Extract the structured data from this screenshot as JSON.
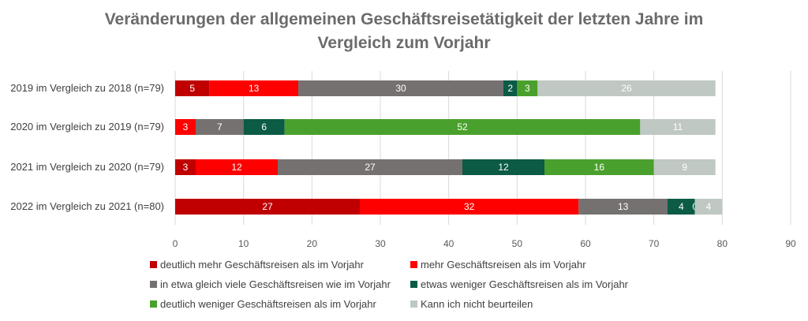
{
  "chart_data": {
    "type": "bar",
    "orientation": "horizontal",
    "stacked": true,
    "title_line1": "Veränderungen der allgemeinen Geschäftsreisetätigkeit der letzten Jahre im",
    "title_line2": "Vergleich zum Vorjahr",
    "categories": [
      "2019 im Vergleich zu 2018 (n=79)",
      "2020 im Vergleich zu 2019 (n=79)",
      "2021 im Vergleich zu 2020 (n=79)",
      "2022 im Vergleich zu 2021 (n=80)"
    ],
    "series": [
      {
        "name": "deutlich mehr Geschäftsreisen als im Vorjahr",
        "color": "#c00000",
        "label_color": "#ffffff",
        "values": [
          5,
          0,
          3,
          27
        ]
      },
      {
        "name": "mehr Geschäftsreisen als im Vorjahr",
        "color": "#ff0000",
        "label_color": "#ffffff",
        "values": [
          13,
          3,
          12,
          32
        ]
      },
      {
        "name": "in etwa gleich viele Geschäftsreisen wie im Vorjahr",
        "color": "#767171",
        "label_color": "#ffffff",
        "values": [
          30,
          7,
          27,
          13
        ]
      },
      {
        "name": "etwas weniger Geschäftsreisen als im Vorjahr",
        "color": "#0b5b45",
        "label_color": "#ffffff",
        "values": [
          2,
          6,
          12,
          4
        ]
      },
      {
        "name": "deutlich weniger Geschäftsreisen als im Vorjahr",
        "color": "#4aa02c",
        "label_color": "#ffffff",
        "values": [
          3,
          52,
          16,
          0
        ]
      },
      {
        "name": "Kann ich nicht beurteilen",
        "color": "#bfc8c3",
        "label_color": "#ffffff",
        "values": [
          26,
          11,
          9,
          4
        ]
      }
    ],
    "xlim": [
      0,
      90
    ],
    "xticks": [
      0,
      10,
      20,
      30,
      40,
      50,
      60,
      70,
      80,
      90
    ],
    "grid": true,
    "legend_position": "bottom"
  }
}
